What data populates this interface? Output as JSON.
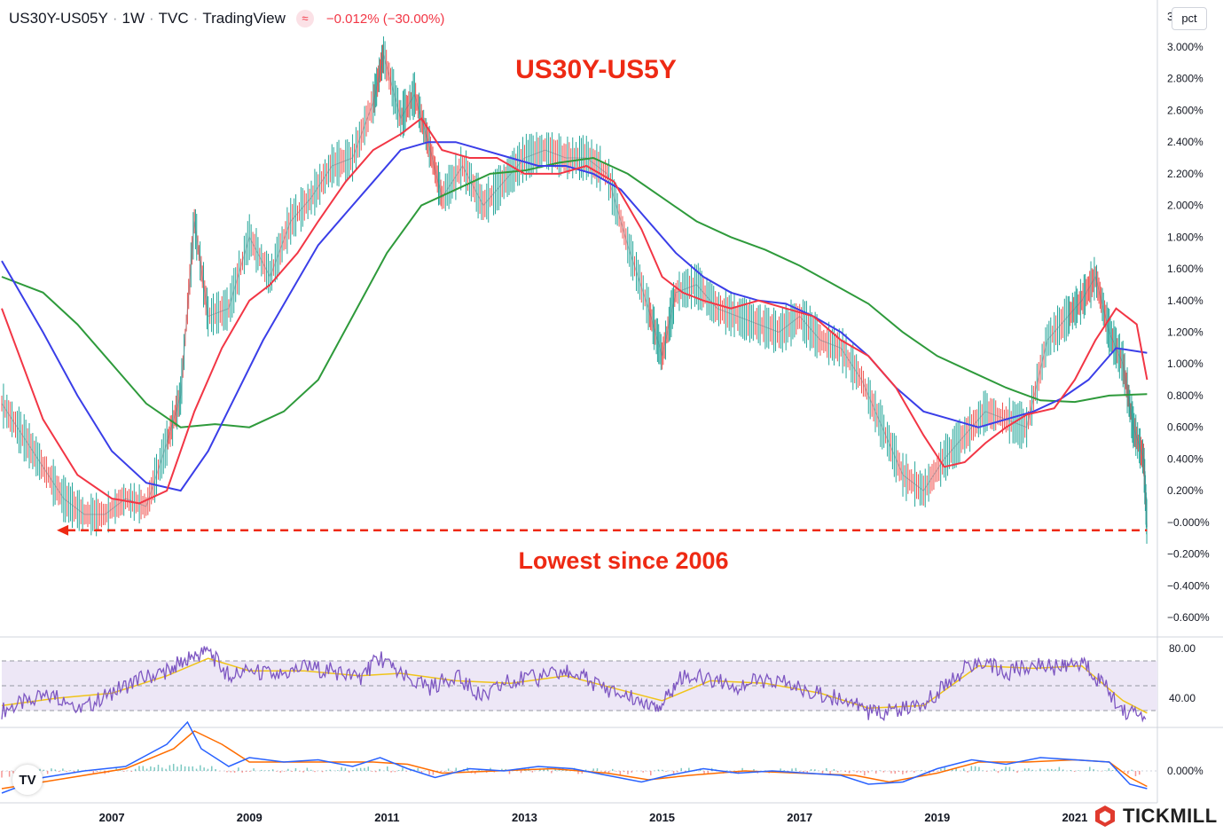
{
  "header": {
    "symbol": "US30Y-US05Y",
    "interval": "1W",
    "source": "TVC",
    "provider": "TradingView",
    "badge_icon": "wave-icon",
    "change": "−0.012% (−30.00%)"
  },
  "scale": {
    "number_mode": "3",
    "unit_button": "pct"
  },
  "branding": {
    "watermark": "TICKMILL",
    "chart_logo": "TV"
  },
  "chart_data": [
    {
      "type": "line",
      "title": "US30Y-US5Y",
      "annotation": "Lowest since 2006",
      "colors": {
        "up": "#26a69a",
        "down": "#ef5350",
        "ma_fast": "#f23645",
        "ma_mid": "#3a3ee8",
        "ma_slow": "#2e9a3b",
        "annotation": "#ee2a14"
      },
      "xlabel": "",
      "ylabel": "",
      "xlim": [
        2005.4,
        2022.2
      ],
      "ylim": [
        -0.65,
        3.1
      ],
      "x_ticks": [
        "2007",
        "2009",
        "2011",
        "2013",
        "2015",
        "2017",
        "2019",
        "2021"
      ],
      "y_ticks": [
        "3.000%",
        "2.800%",
        "2.600%",
        "2.400%",
        "2.200%",
        "2.000%",
        "1.800%",
        "1.600%",
        "1.400%",
        "1.200%",
        "1.000%",
        "0.800%",
        "0.600%",
        "0.400%",
        "0.200%",
        "−0.000%",
        "−0.200%",
        "−0.400%",
        "−0.600%"
      ],
      "reference_line": {
        "value": -0.05,
        "style": "dashed",
        "from_year": 2006.2,
        "to_year": 2022.05
      },
      "series": [
        {
          "role": "price",
          "x": [
            2005.4,
            2005.7,
            2006.0,
            2006.3,
            2006.6,
            2006.9,
            2007.2,
            2007.5,
            2007.8,
            2008.0,
            2008.2,
            2008.4,
            2008.7,
            2009.0,
            2009.3,
            2009.6,
            2009.9,
            2010.2,
            2010.5,
            2010.8,
            2010.95,
            2011.2,
            2011.4,
            2011.6,
            2011.8,
            2012.1,
            2012.4,
            2012.7,
            2013.0,
            2013.3,
            2013.6,
            2013.9,
            2014.2,
            2014.5,
            2014.8,
            2015.0,
            2015.2,
            2015.5,
            2015.8,
            2016.1,
            2016.4,
            2016.7,
            2017.0,
            2017.3,
            2017.6,
            2017.9,
            2018.2,
            2018.5,
            2018.8,
            2019.1,
            2019.4,
            2019.7,
            2020.0,
            2020.3,
            2020.6,
            2020.9,
            2021.1,
            2021.3,
            2021.5,
            2021.7,
            2021.85,
            2022.0,
            2022.05
          ],
          "y": [
            0.75,
            0.55,
            0.35,
            0.15,
            0.05,
            0.05,
            0.15,
            0.1,
            0.5,
            0.8,
            1.9,
            1.3,
            1.35,
            1.8,
            1.55,
            1.9,
            2.05,
            2.25,
            2.3,
            2.65,
            2.95,
            2.55,
            2.7,
            2.4,
            2.05,
            2.25,
            2.0,
            2.15,
            2.3,
            2.35,
            2.3,
            2.3,
            2.2,
            1.75,
            1.35,
            1.05,
            1.45,
            1.5,
            1.35,
            1.3,
            1.25,
            1.2,
            1.3,
            1.15,
            1.1,
            0.9,
            0.6,
            0.3,
            0.2,
            0.4,
            0.55,
            0.7,
            0.65,
            0.6,
            1.15,
            1.3,
            1.4,
            1.55,
            1.2,
            1.0,
            0.6,
            0.4,
            -0.03
          ]
        },
        {
          "role": "ma_fast",
          "x": [
            2005.4,
            2006.0,
            2006.5,
            2007.0,
            2007.4,
            2007.8,
            2008.2,
            2008.6,
            2009.0,
            2009.3,
            2009.7,
            2010.0,
            2010.4,
            2010.8,
            2011.2,
            2011.5,
            2011.8,
            2012.2,
            2012.6,
            2013.0,
            2013.5,
            2013.9,
            2014.3,
            2014.7,
            2015.0,
            2015.3,
            2015.6,
            2016.0,
            2016.4,
            2016.8,
            2017.2,
            2017.6,
            2018.0,
            2018.4,
            2018.8,
            2019.1,
            2019.4,
            2019.7,
            2020.0,
            2020.3,
            2020.7,
            2021.0,
            2021.3,
            2021.6,
            2021.9,
            2022.05
          ],
          "y": [
            1.35,
            0.65,
            0.3,
            0.15,
            0.12,
            0.2,
            0.7,
            1.1,
            1.4,
            1.5,
            1.7,
            1.9,
            2.15,
            2.35,
            2.45,
            2.55,
            2.35,
            2.3,
            2.3,
            2.2,
            2.2,
            2.25,
            2.15,
            1.85,
            1.55,
            1.45,
            1.4,
            1.35,
            1.4,
            1.35,
            1.3,
            1.15,
            1.05,
            0.85,
            0.55,
            0.35,
            0.38,
            0.5,
            0.6,
            0.68,
            0.72,
            0.9,
            1.15,
            1.35,
            1.25,
            0.9
          ]
        },
        {
          "role": "ma_mid",
          "x": [
            2005.4,
            2006.0,
            2006.5,
            2007.0,
            2007.5,
            2008.0,
            2008.4,
            2008.8,
            2009.2,
            2009.6,
            2010.0,
            2010.4,
            2010.8,
            2011.2,
            2011.6,
            2012.0,
            2012.4,
            2012.8,
            2013.2,
            2013.6,
            2014.0,
            2014.4,
            2014.8,
            2015.2,
            2015.6,
            2016.0,
            2016.4,
            2016.8,
            2017.2,
            2017.6,
            2018.0,
            2018.4,
            2018.8,
            2019.2,
            2019.6,
            2020.0,
            2020.4,
            2020.8,
            2021.2,
            2021.6,
            2022.05
          ],
          "y": [
            1.65,
            1.2,
            0.8,
            0.45,
            0.25,
            0.2,
            0.45,
            0.8,
            1.15,
            1.45,
            1.75,
            1.95,
            2.15,
            2.35,
            2.4,
            2.4,
            2.35,
            2.3,
            2.25,
            2.25,
            2.2,
            2.1,
            1.9,
            1.7,
            1.55,
            1.45,
            1.4,
            1.38,
            1.3,
            1.2,
            1.05,
            0.85,
            0.7,
            0.65,
            0.6,
            0.65,
            0.7,
            0.78,
            0.9,
            1.1,
            1.07
          ]
        },
        {
          "role": "ma_slow",
          "x": [
            2005.4,
            2006.0,
            2006.5,
            2007.0,
            2007.5,
            2008.0,
            2008.5,
            2009.0,
            2009.5,
            2010.0,
            2010.5,
            2011.0,
            2011.5,
            2012.0,
            2012.5,
            2013.0,
            2013.5,
            2014.0,
            2014.5,
            2015.0,
            2015.5,
            2016.0,
            2016.5,
            2017.0,
            2017.5,
            2018.0,
            2018.5,
            2019.0,
            2019.5,
            2020.0,
            2020.5,
            2021.0,
            2021.5,
            2022.05
          ],
          "y": [
            1.55,
            1.45,
            1.25,
            1.0,
            0.75,
            0.6,
            0.62,
            0.6,
            0.7,
            0.9,
            1.3,
            1.7,
            2.0,
            2.1,
            2.2,
            2.22,
            2.27,
            2.3,
            2.2,
            2.05,
            1.9,
            1.8,
            1.72,
            1.62,
            1.5,
            1.38,
            1.2,
            1.05,
            0.95,
            0.85,
            0.77,
            0.76,
            0.8,
            0.81
          ]
        }
      ]
    },
    {
      "type": "line",
      "title": "",
      "ylim": [
        20,
        85
      ],
      "y_ticks": [
        "80.00",
        "40.00"
      ],
      "band": [
        30,
        70
      ],
      "midline": 50,
      "colors": {
        "rsi": "#7e57c2",
        "signal": "#f0c419",
        "band": "#ede7f6"
      },
      "series": [
        {
          "role": "rsi",
          "x": [
            2005.4,
            2005.8,
            2006.2,
            2006.6,
            2007.0,
            2007.4,
            2007.8,
            2008.1,
            2008.4,
            2008.7,
            2009.0,
            2009.4,
            2009.8,
            2010.2,
            2010.6,
            2010.9,
            2011.2,
            2011.6,
            2012.0,
            2012.4,
            2012.8,
            2013.2,
            2013.6,
            2013.9,
            2014.3,
            2014.7,
            2015.0,
            2015.3,
            2015.7,
            2016.1,
            2016.5,
            2016.9,
            2017.3,
            2017.7,
            2018.0,
            2018.4,
            2018.8,
            2019.2,
            2019.6,
            2020.0,
            2020.4,
            2020.8,
            2021.1,
            2021.4,
            2021.7,
            2022.05
          ],
          "y": [
            30,
            38,
            42,
            32,
            45,
            55,
            62,
            72,
            78,
            58,
            62,
            58,
            65,
            62,
            56,
            73,
            58,
            48,
            58,
            40,
            55,
            56,
            62,
            55,
            45,
            38,
            35,
            58,
            56,
            50,
            55,
            50,
            42,
            40,
            28,
            30,
            35,
            55,
            72,
            60,
            68,
            64,
            70,
            52,
            30,
            25
          ]
        },
        {
          "role": "signal",
          "x": [
            2005.4,
            2006.2,
            2007.0,
            2007.8,
            2008.4,
            2009.0,
            2009.8,
            2010.6,
            2011.2,
            2012.0,
            2012.8,
            2013.6,
            2014.3,
            2015.0,
            2015.7,
            2016.5,
            2017.3,
            2018.0,
            2018.8,
            2019.6,
            2020.4,
            2021.1,
            2021.7,
            2022.05
          ],
          "y": [
            34,
            40,
            44,
            58,
            72,
            62,
            62,
            58,
            60,
            54,
            52,
            58,
            48,
            38,
            54,
            52,
            44,
            32,
            34,
            66,
            64,
            66,
            38,
            28
          ]
        }
      ]
    },
    {
      "type": "line",
      "title": "",
      "y_ticks": [
        "0.000%"
      ],
      "colors": {
        "macd": "#2962ff",
        "signal": "#ff6d00",
        "hist_up": "#26a69a",
        "hist_down": "#ef5350"
      },
      "series": [
        {
          "role": "macd",
          "x": [
            2005.4,
            2006.0,
            2006.6,
            2007.2,
            2007.8,
            2008.1,
            2008.3,
            2008.7,
            2009.0,
            2009.5,
            2010.0,
            2010.5,
            2010.9,
            2011.3,
            2011.7,
            2012.2,
            2012.7,
            2013.2,
            2013.7,
            2014.2,
            2014.7,
            2015.1,
            2015.6,
            2016.1,
            2016.6,
            2017.1,
            2017.6,
            2018.0,
            2018.5,
            2019.0,
            2019.5,
            2020.0,
            2020.5,
            2021.0,
            2021.5,
            2021.8,
            2022.05
          ],
          "y": [
            -0.1,
            -0.03,
            0.0,
            0.02,
            0.12,
            0.22,
            0.1,
            0.02,
            0.06,
            0.04,
            0.05,
            0.02,
            0.06,
            0.01,
            -0.03,
            0.01,
            0.0,
            0.02,
            0.01,
            -0.02,
            -0.05,
            -0.02,
            0.01,
            -0.01,
            0.0,
            -0.01,
            -0.02,
            -0.06,
            -0.05,
            0.01,
            0.05,
            0.03,
            0.06,
            0.05,
            0.04,
            -0.06,
            -0.08
          ]
        },
        {
          "role": "signal",
          "x": [
            2005.4,
            2006.2,
            2007.2,
            2007.9,
            2008.2,
            2008.6,
            2009.0,
            2009.6,
            2010.2,
            2010.8,
            2011.3,
            2011.8,
            2012.6,
            2013.4,
            2014.2,
            2014.8,
            2015.4,
            2016.2,
            2017.0,
            2017.8,
            2018.3,
            2019.0,
            2019.6,
            2020.3,
            2021.0,
            2021.5,
            2021.8,
            2022.05
          ],
          "y": [
            -0.08,
            -0.04,
            0.01,
            0.1,
            0.18,
            0.12,
            0.04,
            0.04,
            0.04,
            0.04,
            0.03,
            -0.01,
            0.0,
            0.01,
            -0.01,
            -0.04,
            -0.02,
            0.0,
            -0.01,
            -0.02,
            -0.05,
            -0.01,
            0.04,
            0.04,
            0.05,
            0.04,
            -0.03,
            -0.07
          ]
        }
      ]
    }
  ]
}
